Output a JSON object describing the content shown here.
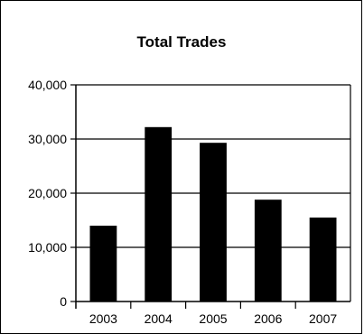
{
  "chart_data": {
    "type": "bar",
    "title": "Total Trades",
    "xlabel": "",
    "ylabel": "",
    "categories": [
      "2003",
      "2004",
      "2005",
      "2006",
      "2007"
    ],
    "values": [
      14000,
      32200,
      29300,
      18800,
      15500
    ],
    "ylim": [
      0,
      40000
    ],
    "yticks": [
      0,
      10000,
      20000,
      30000,
      40000
    ],
    "ytick_labels": [
      "0",
      "10,000",
      "20,000",
      "30,000",
      "40,000"
    ],
    "grid": "horizontal",
    "legend": "none",
    "bar_color": "#000000"
  }
}
